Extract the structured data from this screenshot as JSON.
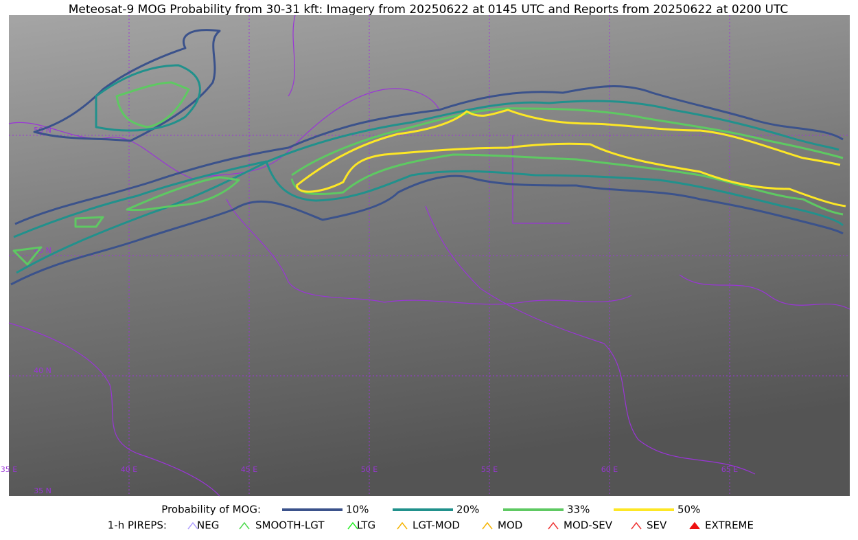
{
  "title": "Meteosat-9 MOG Probability from 30-31 kft: Imagery from 20250622 at 0145 UTC and Reports from 20250622 at 0200 UTC",
  "map": {
    "lon_labels": [
      "35 E",
      "40 E",
      "45 E",
      "50 E",
      "55 E",
      "60 E",
      "65 E"
    ],
    "lat_labels": [
      "50 N",
      "45 N",
      "40 N",
      "35 N"
    ],
    "grid_color": "#9a35d8"
  },
  "legend": {
    "probability": {
      "title": "Probability of MOG:",
      "levels": [
        {
          "label": "10%",
          "color": "#3b528b"
        },
        {
          "label": "20%",
          "color": "#21918c"
        },
        {
          "label": "33%",
          "color": "#5ec962"
        },
        {
          "label": "50%",
          "color": "#fde725"
        }
      ]
    },
    "pireps": {
      "title": "1-h PIREPS:",
      "items": [
        "NEG",
        "SMOOTH-LGT",
        "LTG",
        "LGT-MOD",
        "MOD",
        "MOD-SEV",
        "SEV",
        "EXTREME"
      ]
    }
  }
}
